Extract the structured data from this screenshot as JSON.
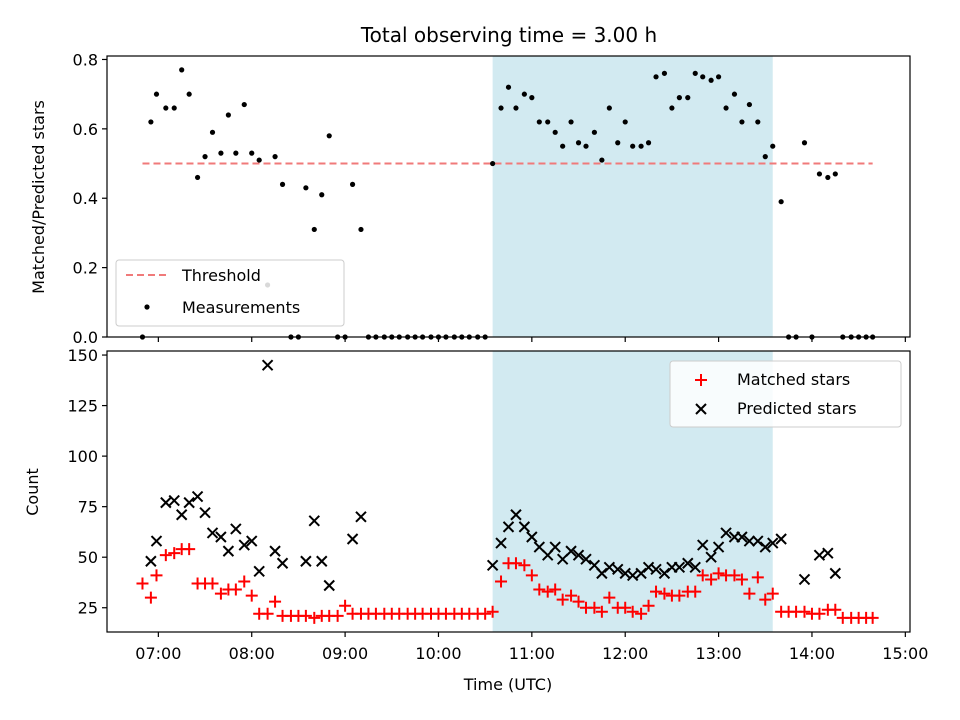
{
  "title": "Total observing time = 3.00 h",
  "colors": {
    "threshold": "#f07a7a",
    "measurement": "#000000",
    "matched": "#ff0000",
    "predicted": "#000000",
    "shade": "#add8e6"
  },
  "chart_data": [
    {
      "type": "scatter",
      "ylabel": "Matched/Predicted stars",
      "xlim": [
        6.45,
        15.05
      ],
      "ylim": [
        0.0,
        0.81
      ],
      "yticks": [
        0.0,
        0.2,
        0.4,
        0.6,
        0.8
      ],
      "yticklabels": [
        "0.0",
        "0.2",
        "0.4",
        "0.6",
        "0.8"
      ],
      "shaded_range": [
        10.58,
        13.58
      ],
      "legend_position": "lower-left",
      "series": [
        {
          "name": "Threshold",
          "kind": "line-dashed",
          "x": [
            6.83,
            14.65
          ],
          "y": [
            0.5,
            0.5
          ]
        },
        {
          "name": "Measurements",
          "kind": "points",
          "x": [
            6.83,
            6.92,
            6.98,
            7.08,
            7.17,
            7.25,
            7.33,
            7.42,
            7.5,
            7.58,
            7.67,
            7.75,
            7.83,
            7.92,
            8.0,
            8.08,
            8.17,
            8.25,
            8.33,
            8.42,
            8.5,
            8.58,
            8.67,
            8.75,
            8.83,
            8.92,
            9.0,
            9.08,
            9.17,
            9.25,
            9.33,
            9.42,
            9.5,
            9.58,
            9.67,
            9.75,
            9.83,
            9.92,
            10.0,
            10.08,
            10.17,
            10.25,
            10.33,
            10.42,
            10.5,
            10.58,
            10.67,
            10.75,
            10.83,
            10.92,
            11.0,
            11.08,
            11.17,
            11.25,
            11.33,
            11.42,
            11.5,
            11.58,
            11.67,
            11.75,
            11.83,
            11.92,
            12.0,
            12.08,
            12.17,
            12.25,
            12.33,
            12.42,
            12.5,
            12.58,
            12.67,
            12.75,
            12.83,
            12.92,
            13.0,
            13.08,
            13.17,
            13.25,
            13.33,
            13.42,
            13.5,
            13.58,
            13.67,
            13.75,
            13.83,
            13.92,
            14.0,
            14.08,
            14.17,
            14.25,
            14.33,
            14.42,
            14.5,
            14.58,
            14.65
          ],
          "y": [
            0.0,
            0.62,
            0.7,
            0.66,
            0.66,
            0.77,
            0.7,
            0.46,
            0.52,
            0.59,
            0.53,
            0.64,
            0.53,
            0.67,
            0.53,
            0.51,
            0.15,
            0.52,
            0.44,
            0.0,
            0.0,
            0.43,
            0.31,
            0.41,
            0.58,
            0.0,
            0.0,
            0.44,
            0.31,
            0.0,
            0.0,
            0.0,
            0.0,
            0.0,
            0.0,
            0.0,
            0.0,
            0.0,
            0.0,
            0.0,
            0.0,
            0.0,
            0.0,
            0.0,
            0.0,
            0.5,
            0.66,
            0.72,
            0.66,
            0.7,
            0.69,
            0.62,
            0.62,
            0.59,
            0.55,
            0.62,
            0.56,
            0.55,
            0.59,
            0.51,
            0.66,
            0.56,
            0.62,
            0.55,
            0.55,
            0.56,
            0.75,
            0.76,
            0.66,
            0.69,
            0.69,
            0.76,
            0.75,
            0.74,
            0.75,
            0.66,
            0.7,
            0.62,
            0.67,
            0.62,
            0.52,
            0.55,
            0.39,
            0.0,
            0.0,
            0.56,
            0.0,
            0.47,
            0.46,
            0.47,
            0.0,
            0.0,
            0.0,
            0.0,
            0.0
          ]
        }
      ]
    },
    {
      "type": "scatter",
      "xlabel": "Time (UTC)",
      "ylabel": "Count",
      "xlim": [
        6.45,
        15.05
      ],
      "ylim": [
        13,
        152
      ],
      "yticks": [
        25,
        50,
        75,
        100,
        125,
        150
      ],
      "yticklabels": [
        "25",
        "50",
        "75",
        "100",
        "125",
        "150"
      ],
      "xticks": [
        7,
        8,
        9,
        10,
        11,
        12,
        13,
        14,
        15
      ],
      "xticklabels": [
        "07:00",
        "08:00",
        "09:00",
        "10:00",
        "11:00",
        "12:00",
        "13:00",
        "14:00",
        "15:00"
      ],
      "shaded_range": [
        10.58,
        13.58
      ],
      "legend_position": "upper-right",
      "series": [
        {
          "name": "Matched stars",
          "kind": "plus",
          "x": [
            6.83,
            6.92,
            6.98,
            7.08,
            7.17,
            7.25,
            7.33,
            7.42,
            7.5,
            7.58,
            7.67,
            7.75,
            7.83,
            7.92,
            8.0,
            8.08,
            8.17,
            8.25,
            8.33,
            8.42,
            8.5,
            8.58,
            8.67,
            8.75,
            8.83,
            8.92,
            9.0,
            9.08,
            9.17,
            9.25,
            9.33,
            9.42,
            9.5,
            9.58,
            9.67,
            9.75,
            9.83,
            9.92,
            10.0,
            10.08,
            10.17,
            10.25,
            10.33,
            10.42,
            10.5,
            10.58,
            10.67,
            10.75,
            10.83,
            10.92,
            11.0,
            11.08,
            11.17,
            11.25,
            11.33,
            11.42,
            11.5,
            11.58,
            11.67,
            11.75,
            11.83,
            11.92,
            12.0,
            12.08,
            12.17,
            12.25,
            12.33,
            12.42,
            12.5,
            12.58,
            12.67,
            12.75,
            12.83,
            12.92,
            13.0,
            13.08,
            13.17,
            13.25,
            13.33,
            13.42,
            13.5,
            13.58,
            13.67,
            13.75,
            13.83,
            13.92,
            14.0,
            14.08,
            14.17,
            14.25,
            14.33,
            14.42,
            14.5,
            14.58,
            14.65
          ],
          "y": [
            37,
            30,
            41,
            51,
            52,
            54,
            54,
            37,
            37,
            37,
            32,
            34,
            34,
            38,
            31,
            22,
            22,
            28,
            21,
            21,
            21,
            21,
            20,
            21,
            21,
            21,
            26,
            22,
            22,
            22,
            22,
            22,
            22,
            22,
            22,
            22,
            22,
            22,
            22,
            22,
            22,
            22,
            22,
            22,
            22,
            23,
            38,
            47,
            47,
            46,
            41,
            34,
            33,
            34,
            29,
            31,
            28,
            25,
            25,
            23,
            30,
            25,
            25,
            23,
            22,
            26,
            33,
            32,
            31,
            31,
            33,
            33,
            41,
            39,
            42,
            41,
            41,
            39,
            32,
            40,
            29,
            32,
            23,
            23,
            23,
            23,
            22,
            22,
            24,
            24,
            20,
            20,
            20,
            20,
            20
          ]
        },
        {
          "name": "Predicted stars",
          "kind": "x",
          "x": [
            6.92,
            6.98,
            7.08,
            7.17,
            7.25,
            7.33,
            7.42,
            7.5,
            7.58,
            7.67,
            7.75,
            7.83,
            7.92,
            8.0,
            8.08,
            8.17,
            8.25,
            8.33,
            8.58,
            8.67,
            8.75,
            8.83,
            9.08,
            9.17,
            10.58,
            10.67,
            10.75,
            10.83,
            10.92,
            11.0,
            11.08,
            11.17,
            11.25,
            11.33,
            11.42,
            11.5,
            11.58,
            11.67,
            11.75,
            11.83,
            11.92,
            12.0,
            12.08,
            12.17,
            12.25,
            12.33,
            12.42,
            12.5,
            12.58,
            12.67,
            12.75,
            12.83,
            12.92,
            13.0,
            13.08,
            13.17,
            13.25,
            13.33,
            13.42,
            13.5,
            13.58,
            13.67,
            13.92,
            14.08,
            14.17,
            14.25
          ],
          "y": [
            48,
            58,
            77,
            78,
            71,
            77,
            80,
            72,
            62,
            60,
            53,
            64,
            56,
            58,
            43,
            145,
            53,
            47,
            48,
            68,
            48,
            36,
            59,
            70,
            46,
            57,
            65,
            71,
            65,
            60,
            55,
            51,
            55,
            49,
            53,
            51,
            49,
            46,
            42,
            45,
            44,
            42,
            41,
            42,
            45,
            44,
            42,
            45,
            45,
            47,
            45,
            56,
            50,
            55,
            62,
            60,
            60,
            58,
            58,
            55,
            57,
            59,
            39,
            51,
            52,
            42
          ]
        }
      ]
    }
  ]
}
